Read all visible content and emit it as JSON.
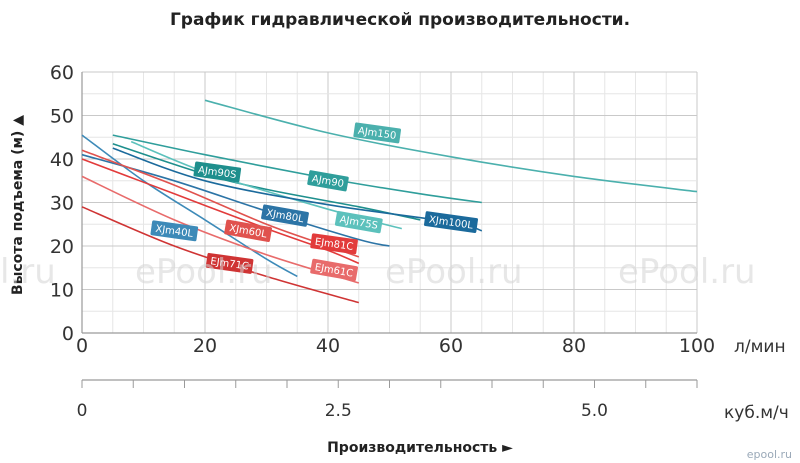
{
  "chart_data": {
    "type": "line",
    "title": "График гидравлической производительности.",
    "ylabel": "Высота подъема (м) ▲",
    "xlabel": "Производительность ►",
    "x_unit": "л/мин",
    "x2_unit": "куб.м/ч",
    "xlim": [
      0,
      100
    ],
    "ylim": [
      0,
      60
    ],
    "x_ticks": [
      0,
      20,
      40,
      60,
      80,
      100
    ],
    "y_ticks": [
      0,
      10,
      20,
      30,
      40,
      50,
      60
    ],
    "x2_ticks": [
      {
        "label": "0",
        "x": 0
      },
      {
        "label": "2.5",
        "x": 41.67
      },
      {
        "label": "5.0",
        "x": 83.33
      }
    ],
    "grid": true,
    "series": [
      {
        "name": "AJm150",
        "color": "#4bb0ad",
        "label_at": [
          48,
          46
        ],
        "points": [
          [
            20,
            53.5
          ],
          [
            40,
            46
          ],
          [
            60,
            40.5
          ],
          [
            80,
            36
          ],
          [
            100,
            32.5
          ]
        ]
      },
      {
        "name": "AJm90",
        "color": "#2f9e9b",
        "label_at": [
          40,
          35
        ],
        "points": [
          [
            5,
            45.5
          ],
          [
            20,
            41
          ],
          [
            40,
            35.5
          ],
          [
            55,
            32
          ],
          [
            65,
            30
          ]
        ]
      },
      {
        "name": "AJm90S",
        "color": "#1e8f8d",
        "label_at": [
          22,
          37
        ],
        "points": [
          [
            5,
            43.5
          ],
          [
            20,
            36.5
          ],
          [
            30,
            33
          ],
          [
            45,
            29
          ],
          [
            55,
            26
          ]
        ]
      },
      {
        "name": "AJm75S",
        "color": "#5cc1bc",
        "label_at": [
          45,
          25.5
        ],
        "points": [
          [
            8,
            44
          ],
          [
            20,
            37
          ],
          [
            35,
            30.5
          ],
          [
            45,
            26.5
          ],
          [
            52,
            24
          ]
        ]
      },
      {
        "name": "XJm100L",
        "color": "#1b6a9c",
        "label_at": [
          60,
          25.5
        ],
        "points": [
          [
            5,
            42.5
          ],
          [
            20,
            35
          ],
          [
            40,
            29.5
          ],
          [
            60,
            25.5
          ],
          [
            65,
            23.5
          ]
        ]
      },
      {
        "name": "XJm80L",
        "color": "#2c74a6",
        "label_at": [
          33,
          27
        ],
        "points": [
          [
            0,
            41
          ],
          [
            15,
            35
          ],
          [
            30,
            28
          ],
          [
            45,
            21.5
          ],
          [
            50,
            20
          ]
        ]
      },
      {
        "name": "XJm40L",
        "color": "#3d8ab8",
        "label_at": [
          15,
          23.5
        ],
        "points": [
          [
            0,
            45.5
          ],
          [
            10,
            35
          ],
          [
            20,
            26
          ],
          [
            30,
            17
          ],
          [
            35,
            13
          ]
        ]
      },
      {
        "name": "XJm60L",
        "color": "#e0524e",
        "label_at": [
          27,
          23.5
        ],
        "points": [
          [
            0,
            42
          ],
          [
            15,
            34
          ],
          [
            30,
            25
          ],
          [
            40,
            20
          ],
          [
            45,
            17.5
          ]
        ]
      },
      {
        "name": "EJm81C",
        "color": "#e23b3b",
        "label_at": [
          41,
          20.5
        ],
        "points": [
          [
            0,
            40
          ],
          [
            15,
            32
          ],
          [
            30,
            24
          ],
          [
            40,
            19
          ],
          [
            45,
            16
          ]
        ]
      },
      {
        "name": "EJm61C",
        "color": "#e86b6b",
        "label_at": [
          41,
          14.5
        ],
        "points": [
          [
            0,
            36
          ],
          [
            15,
            26
          ],
          [
            30,
            18
          ],
          [
            45,
            11.5
          ]
        ]
      },
      {
        "name": "EJm71C",
        "color": "#cf3434",
        "label_at": [
          24,
          16
        ],
        "points": [
          [
            0,
            29
          ],
          [
            15,
            20
          ],
          [
            30,
            13
          ],
          [
            45,
            7
          ]
        ]
      }
    ]
  },
  "watermarks": [
    "l.ru",
    "ePool.ru",
    "ePool.ru",
    "ePool.ru"
  ],
  "site": "epool.ru"
}
